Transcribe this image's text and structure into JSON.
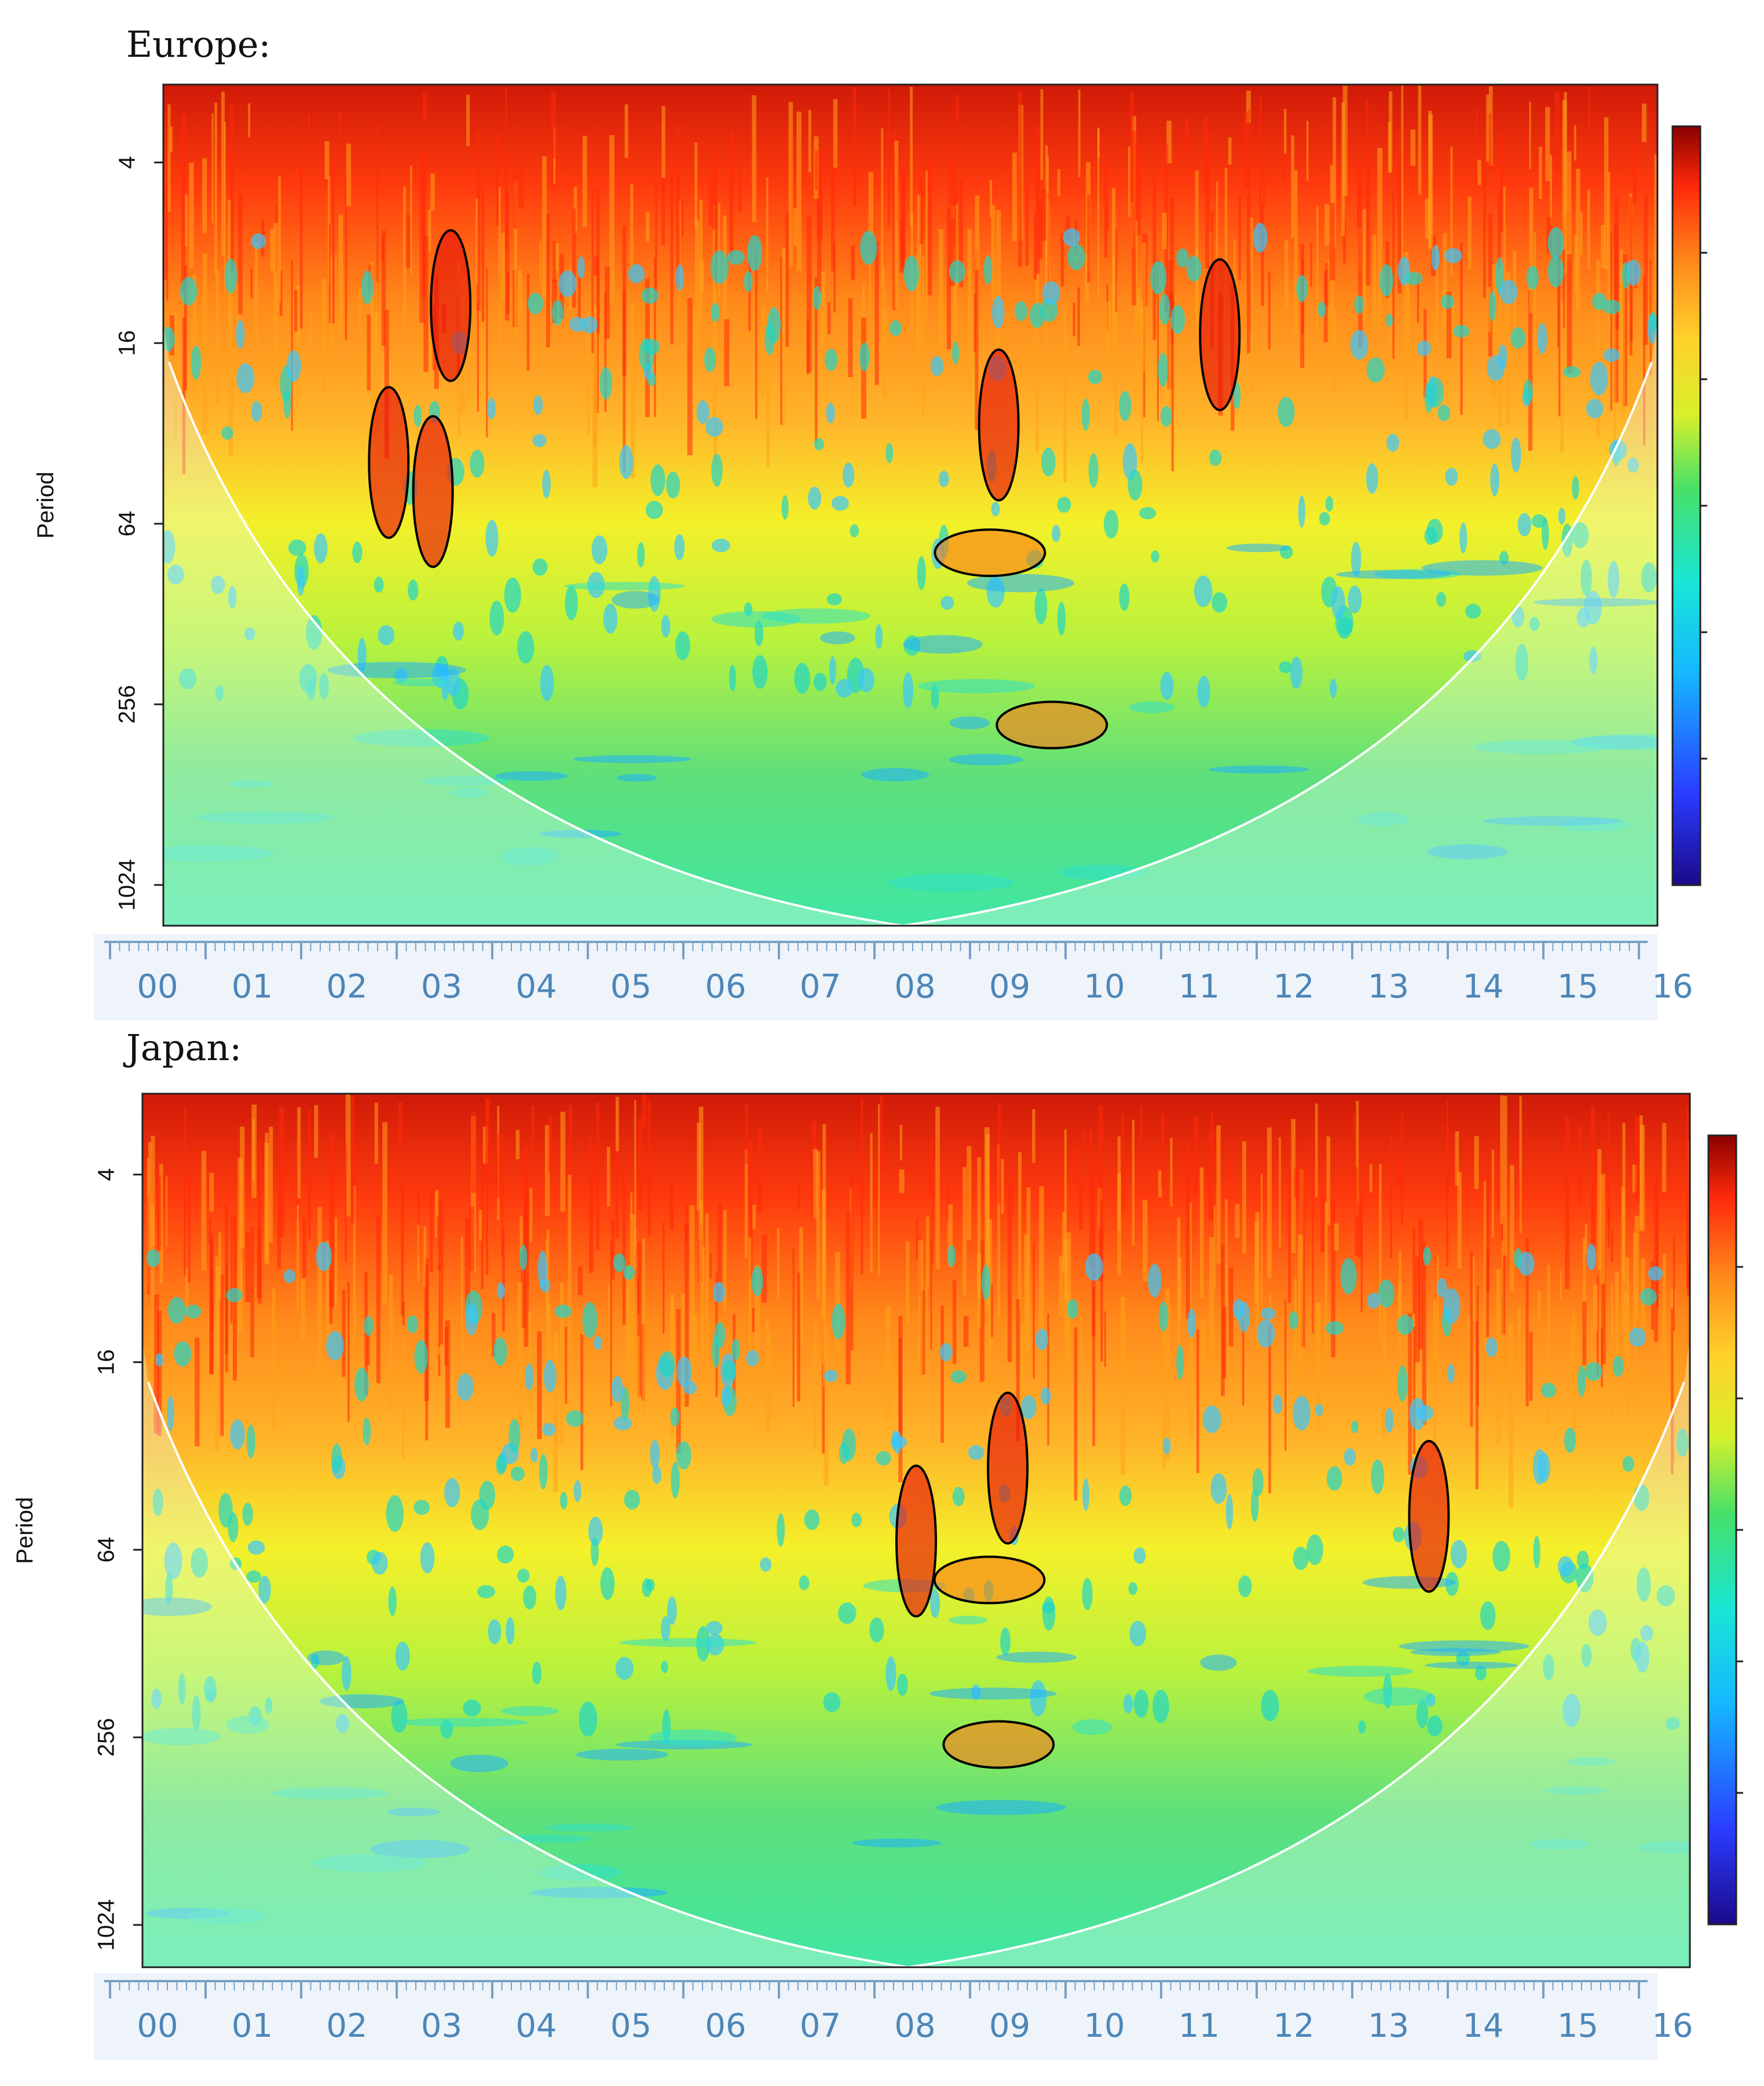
{
  "chart_data": [
    {
      "type": "heatmap",
      "title": "Europe:",
      "ylabel": "Period",
      "y_scale": "log2",
      "y_reversed": true,
      "y_ticks": [
        "4",
        "16",
        "64",
        "256",
        "1024"
      ],
      "x_ticks": [
        "00",
        "01",
        "02",
        "03",
        "04",
        "05",
        "06",
        "07",
        "08",
        "09",
        "10",
        "11",
        "12",
        "13",
        "14",
        "15",
        "16"
      ],
      "colorbar": "blue-cyan-green-yellow-orange-red (low to high power)",
      "significance_contours": [
        {
          "x": 2.1,
          "period": 40
        },
        {
          "x": 2.6,
          "period": 50
        },
        {
          "x": 2.8,
          "period": 12
        },
        {
          "x": 9.0,
          "period": 30
        },
        {
          "x": 8.9,
          "period": 80
        },
        {
          "x": 9.6,
          "period": 300
        },
        {
          "x": 11.5,
          "period": 15
        }
      ]
    },
    {
      "type": "heatmap",
      "title": "Japan:",
      "ylabel": "Period",
      "y_scale": "log2",
      "y_reversed": true,
      "y_ticks": [
        "4",
        "16",
        "64",
        "256",
        "1024"
      ],
      "x_ticks": [
        "00",
        "01",
        "02",
        "03",
        "04",
        "05",
        "06",
        "07",
        "08",
        "09",
        "10",
        "11",
        "12",
        "13",
        "14",
        "15",
        "16"
      ],
      "colorbar": "blue-cyan-green-yellow-orange-red (low to high power)",
      "significance_contours": [
        {
          "x": 9.0,
          "period": 35
        },
        {
          "x": 8.8,
          "period": 80
        },
        {
          "x": 8.9,
          "period": 270
        },
        {
          "x": 8.0,
          "period": 60
        },
        {
          "x": 13.6,
          "period": 50
        }
      ]
    }
  ],
  "colors": {
    "low": "#1b0a8a",
    "mid": "#1fd6a8",
    "high": "#8b0000"
  }
}
